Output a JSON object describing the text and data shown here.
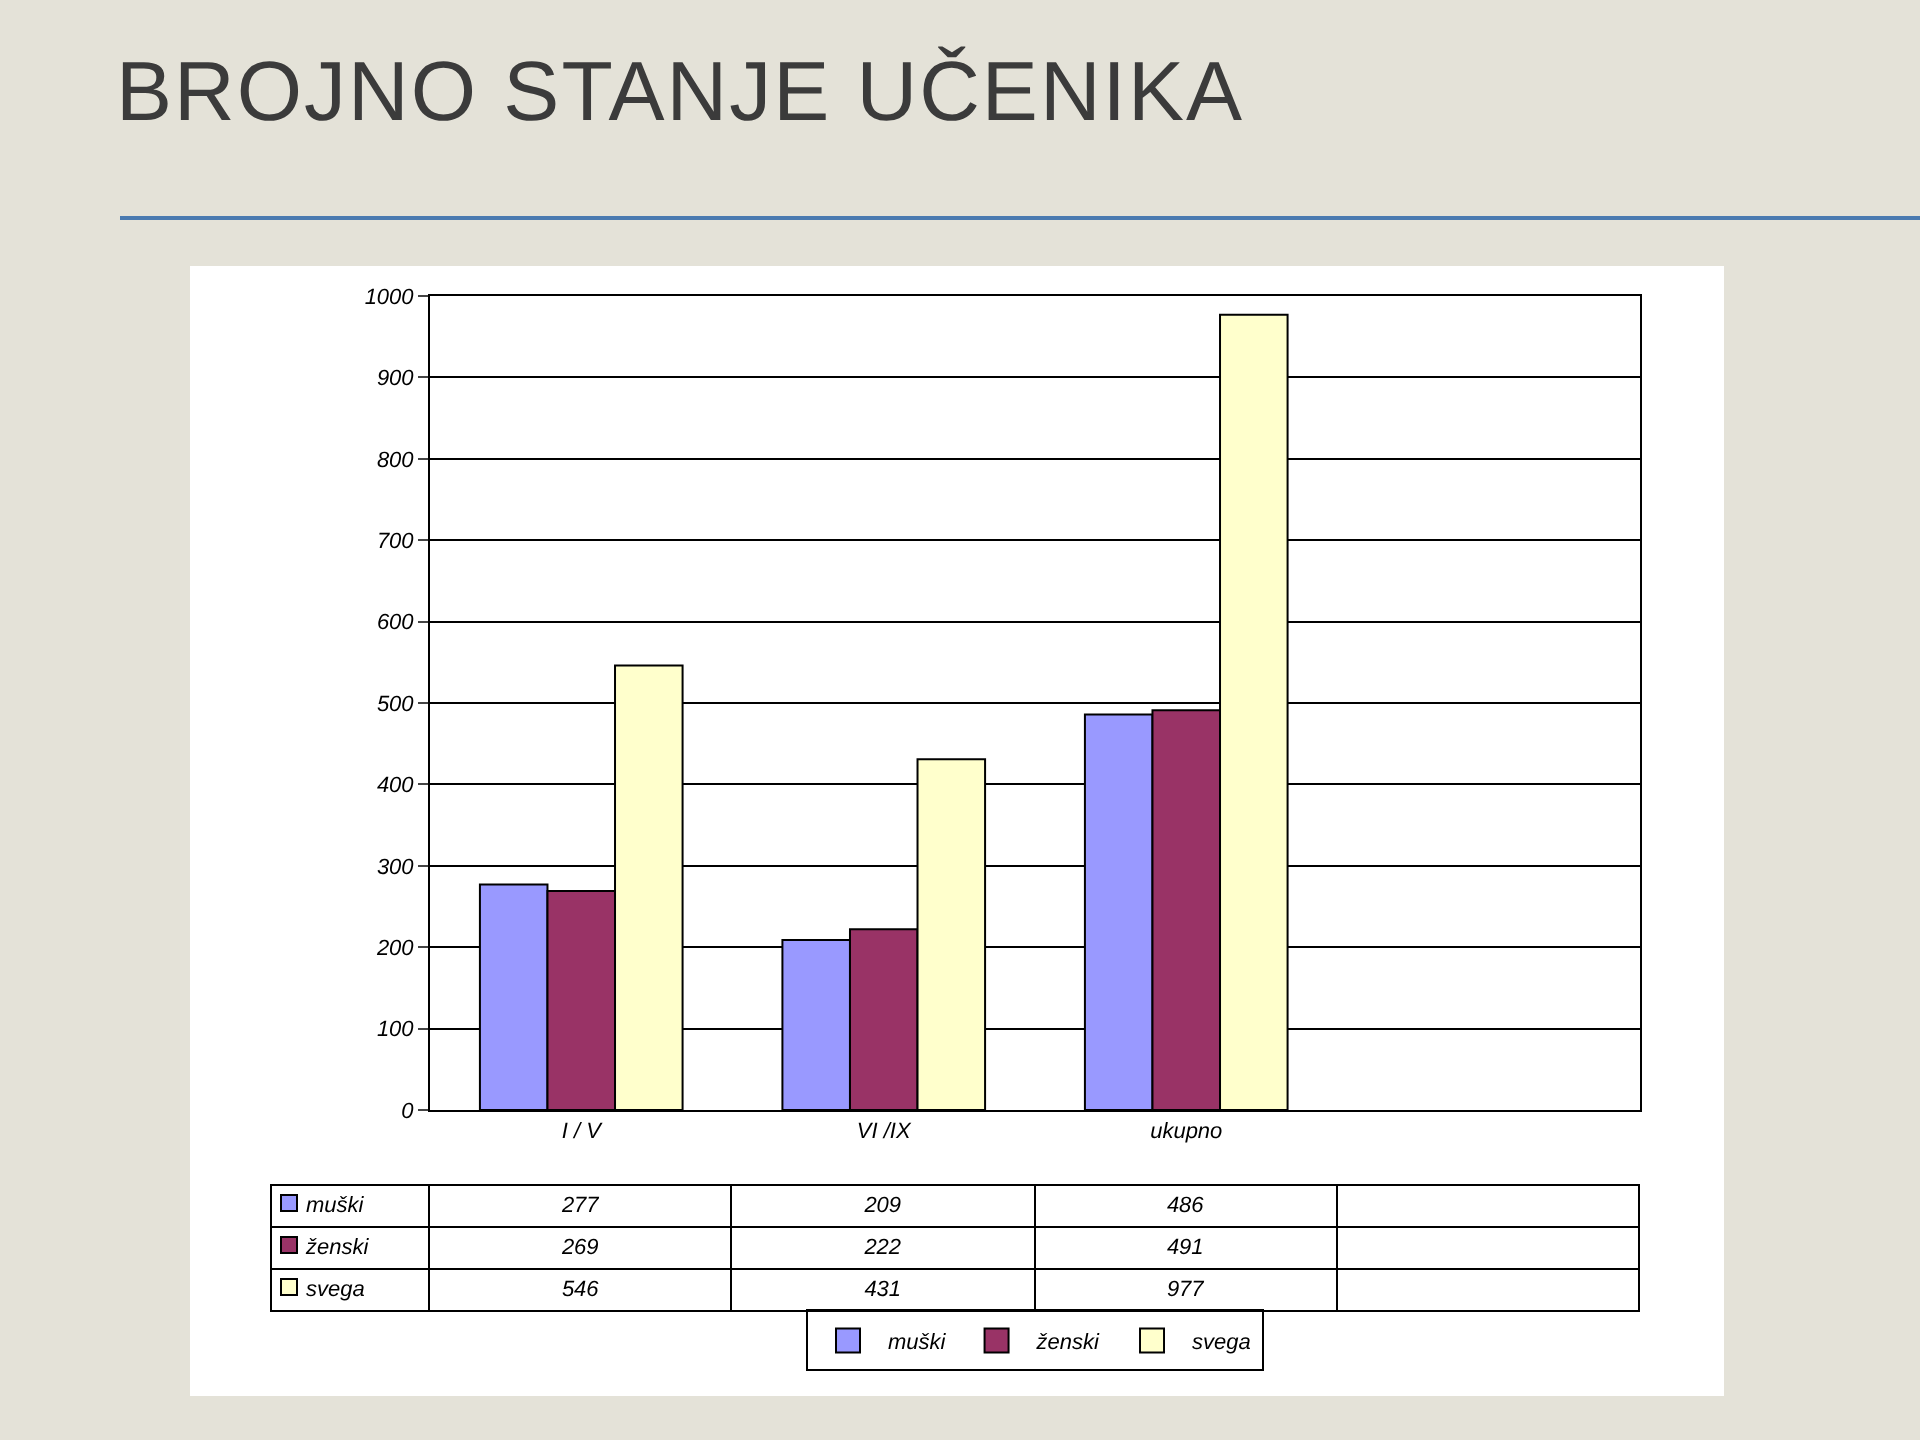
{
  "chart_data": {
    "type": "bar",
    "title": "BROJNO STANJE UČENIKA",
    "categories": [
      "I / V",
      "VI /IX",
      "ukupno",
      null
    ],
    "series": [
      {
        "name": "muški",
        "color": "#9999ff",
        "values": [
          277,
          209,
          486,
          null
        ]
      },
      {
        "name": "ženski",
        "color": "#993366",
        "values": [
          269,
          222,
          491,
          null
        ]
      },
      {
        "name": "svega",
        "color": "#ffffcc",
        "values": [
          546,
          431,
          977,
          null
        ]
      }
    ],
    "ylim": [
      0,
      1000
    ],
    "yticks": [
      0,
      100,
      200,
      300,
      400,
      500,
      600,
      700,
      800,
      900,
      1000
    ],
    "grid": "y",
    "legend": "bottom",
    "data_labels": true
  }
}
